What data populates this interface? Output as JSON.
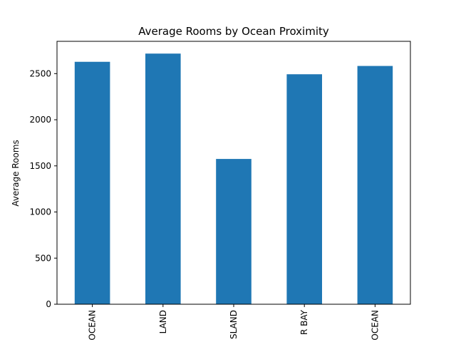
{
  "chart_data": {
    "type": "bar",
    "title": "Average Rooms by Ocean Proximity",
    "xlabel": "",
    "ylabel": "Average Rooms",
    "categories": [
      "OCEAN",
      "LAND",
      "SLAND",
      "R BAY",
      "OCEAN"
    ],
    "values": [
      2628,
      2717,
      1575,
      2493,
      2583
    ],
    "ylim": [
      0,
      2850
    ],
    "yticks": [
      0,
      500,
      1000,
      1500,
      2000,
      2500
    ],
    "grid": false,
    "bar_color": "#1f77b4"
  }
}
